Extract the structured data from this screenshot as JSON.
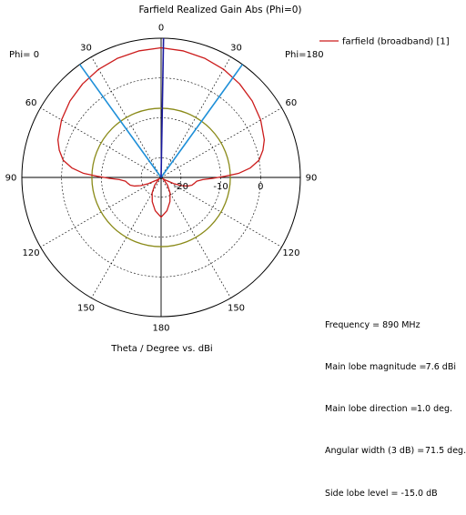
{
  "chart_data": {
    "type": "polar-line",
    "title": "Farfield Realized Gain Abs (Phi=0)",
    "xlabel": "Theta / Degree vs. dBi",
    "left_label": "Phi=  0",
    "right_label": "Phi=180",
    "angle_ticks": [
      {
        "deg": 0,
        "label": "0"
      },
      {
        "deg": 30,
        "label": "30"
      },
      {
        "deg": 60,
        "label": "60"
      },
      {
        "deg": 90,
        "label": "90"
      },
      {
        "deg": 120,
        "label": "120"
      },
      {
        "deg": 150,
        "label": "150"
      },
      {
        "deg": 180,
        "label": "180"
      },
      {
        "deg": -150,
        "label": "150"
      },
      {
        "deg": -120,
        "label": "120"
      },
      {
        "deg": -90,
        "label": "90"
      },
      {
        "deg": -60,
        "label": "60"
      },
      {
        "deg": -30,
        "label": "30"
      }
    ],
    "radial_range_db": [
      -25,
      10
    ],
    "radial_ticks": [
      {
        "db": -20,
        "label": "-20"
      },
      {
        "db": -10,
        "label": "-10"
      },
      {
        "db": 0,
        "label": "0"
      }
    ],
    "legend": {
      "placement": "top-right",
      "entries": [
        "farfield (broadband) [1]"
      ]
    },
    "series": [
      {
        "name": "farfield (broadband) [1]",
        "color": "#cc1c1c",
        "points_deg_dbi": [
          [
            0,
            7.6
          ],
          [
            10,
            7.3
          ],
          [
            20,
            6.9
          ],
          [
            30,
            6.4
          ],
          [
            40,
            5.7
          ],
          [
            50,
            4.9
          ],
          [
            60,
            3.9
          ],
          [
            70,
            2.6
          ],
          [
            75,
            1.5
          ],
          [
            80,
            0.0
          ],
          [
            84,
            -2.5
          ],
          [
            87,
            -5.5
          ],
          [
            89,
            -9.0
          ],
          [
            91,
            -12.0
          ],
          [
            93,
            -14.5
          ],
          [
            96,
            -16.0
          ],
          [
            100,
            -16.5
          ],
          [
            104,
            -17.0
          ],
          [
            108,
            -18.0
          ],
          [
            112,
            -19.5
          ],
          [
            116,
            -21.5
          ],
          [
            120,
            -23.5
          ],
          [
            126,
            -24.5
          ],
          [
            132,
            -24.0
          ],
          [
            140,
            -22.5
          ],
          [
            150,
            -20.5
          ],
          [
            160,
            -18.5
          ],
          [
            170,
            -16.5
          ],
          [
            180,
            -15.0
          ],
          [
            -170,
            -16.5
          ],
          [
            -160,
            -18.5
          ],
          [
            -150,
            -20.5
          ],
          [
            -140,
            -22.5
          ],
          [
            -132,
            -24.0
          ],
          [
            -126,
            -24.5
          ],
          [
            -120,
            -23.5
          ],
          [
            -116,
            -21.5
          ],
          [
            -112,
            -19.5
          ],
          [
            -108,
            -18.0
          ],
          [
            -104,
            -17.0
          ],
          [
            -100,
            -16.5
          ],
          [
            -96,
            -16.0
          ],
          [
            -93,
            -14.5
          ],
          [
            -91,
            -12.0
          ],
          [
            -89,
            -9.0
          ],
          [
            -87,
            -5.5
          ],
          [
            -84,
            -2.5
          ],
          [
            -80,
            0.0
          ],
          [
            -75,
            1.5
          ],
          [
            -70,
            2.6
          ],
          [
            -60,
            3.9
          ],
          [
            -50,
            4.9
          ],
          [
            -40,
            5.7
          ],
          [
            -30,
            6.4
          ],
          [
            -20,
            6.9
          ],
          [
            -10,
            7.3
          ]
        ]
      }
    ],
    "markers": {
      "main_lobe_deg": 1.0,
      "main_lobe_color": "#1a1aa0",
      "beamwidth_deg": [
        -35.75,
        35.75
      ],
      "beamwidth_color": "#1e8fd8",
      "side_lobe_level_db": -7.6,
      "side_lobe_color": "#8a8a18"
    },
    "info": [
      {
        "label": "Frequency = 890 MHz",
        "value": ""
      },
      {
        "label": "Main lobe magnitude = ",
        "value": "7.6 dBi"
      },
      {
        "label": "Main lobe direction = ",
        "value": "1.0 deg."
      },
      {
        "label": "Angular width (3 dB) = ",
        "value": "71.5 deg."
      },
      {
        "label": "Side lobe level = ",
        "value": "-15.0 dB"
      }
    ]
  }
}
